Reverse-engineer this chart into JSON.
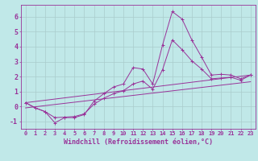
{
  "background_color": "#c0e8e8",
  "line_color": "#993399",
  "grid_color": "#aacccc",
  "xlabel": "Windchill (Refroidissement éolien,°C)",
  "xlabel_fontsize": 6,
  "xtick_fontsize": 5,
  "ytick_fontsize": 6,
  "ylim": [
    -1.5,
    6.8
  ],
  "xlim": [
    -0.5,
    23.5
  ],
  "yticks": [
    -1,
    0,
    1,
    2,
    3,
    4,
    5,
    6
  ],
  "xticks": [
    0,
    1,
    2,
    3,
    4,
    5,
    6,
    7,
    8,
    9,
    10,
    11,
    12,
    13,
    14,
    15,
    16,
    17,
    18,
    19,
    20,
    21,
    22,
    23
  ],
  "series1_x": [
    0,
    1,
    2,
    3,
    4,
    5,
    6,
    7,
    8,
    9,
    10,
    11,
    12,
    13,
    14,
    15,
    16,
    17,
    18,
    19,
    20,
    21,
    22,
    23
  ],
  "series1_y": [
    0.25,
    -0.1,
    -0.35,
    -1.1,
    -0.75,
    -0.75,
    -0.55,
    0.35,
    0.85,
    1.3,
    1.5,
    2.6,
    2.5,
    1.5,
    4.1,
    6.35,
    5.85,
    4.45,
    3.3,
    2.1,
    2.15,
    2.1,
    1.85,
    2.1
  ],
  "series2_x": [
    0,
    1,
    2,
    3,
    4,
    5,
    6,
    7,
    8,
    9,
    10,
    11,
    12,
    13,
    14,
    15,
    16,
    17,
    18,
    19,
    20,
    21,
    22,
    23
  ],
  "series2_y": [
    0.25,
    -0.1,
    -0.35,
    -0.75,
    -0.72,
    -0.68,
    -0.5,
    0.15,
    0.55,
    0.85,
    1.05,
    1.5,
    1.7,
    1.15,
    2.45,
    4.45,
    3.8,
    3.05,
    2.5,
    1.85,
    1.9,
    1.95,
    1.75,
    2.1
  ],
  "series3_x": [
    0,
    23
  ],
  "series3_y": [
    0.25,
    2.1
  ],
  "series4_x": [
    0,
    23
  ],
  "series4_y": [
    -0.1,
    1.65
  ]
}
